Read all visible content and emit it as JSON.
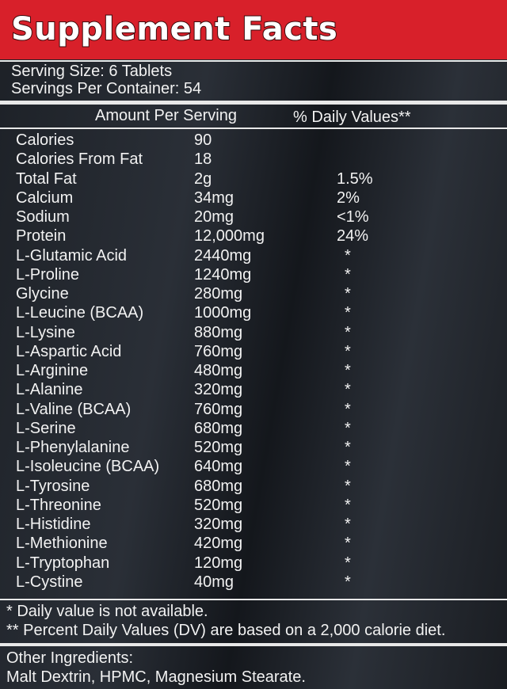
{
  "header": {
    "title": "Supplement Facts"
  },
  "serving_size": "Serving Size: 6 Tablets",
  "servings_per_container": "Servings Per Container: 54",
  "columns": {
    "amount": "Amount Per Serving",
    "daily": "% Daily Values**"
  },
  "rows": [
    [
      "Calories",
      "90",
      ""
    ],
    [
      "Calories From Fat",
      "18",
      ""
    ],
    [
      "Total Fat",
      "2g",
      "1.5%"
    ],
    [
      "Calcium",
      "34mg",
      "2%"
    ],
    [
      "Sodium",
      "20mg",
      "<1%"
    ],
    [
      "Protein",
      "12,000mg",
      "24%"
    ],
    [
      "L-Glutamic Acid",
      "2440mg",
      "*"
    ],
    [
      "L-Proline",
      "1240mg",
      "*"
    ],
    [
      "Glycine",
      "280mg",
      "*"
    ],
    [
      "L-Leucine (BCAA)",
      "1000mg",
      "*"
    ],
    [
      "L-Lysine",
      "880mg",
      "*"
    ],
    [
      "L-Aspartic Acid",
      "760mg",
      "*"
    ],
    [
      "L-Arginine",
      "480mg",
      "*"
    ],
    [
      "L-Alanine",
      "320mg",
      "*"
    ],
    [
      "L-Valine (BCAA)",
      "760mg",
      "*"
    ],
    [
      "L-Serine",
      "680mg",
      "*"
    ],
    [
      "L-Phenylalanine",
      "520mg",
      "*"
    ],
    [
      "L-Isoleucine (BCAA)",
      "640mg",
      "*"
    ],
    [
      "L-Tyrosine",
      "680mg",
      "*"
    ],
    [
      "L-Threonine",
      "520mg",
      "*"
    ],
    [
      "L-Histidine",
      "320mg",
      "*"
    ],
    [
      "L-Methionine",
      "420mg",
      "*"
    ],
    [
      "L-Tryptophan",
      "120mg",
      "*"
    ],
    [
      "L-Cystine",
      "40mg",
      "*"
    ]
  ],
  "footnotes": [
    "* Daily value is not available.",
    "** Percent Daily Values (DV) are based on a 2,000 calorie diet."
  ],
  "other_ingredients": {
    "label": "Other Ingredients:",
    "text": "Malt Dextrin, HPMC, Magnesium Stearate."
  }
}
